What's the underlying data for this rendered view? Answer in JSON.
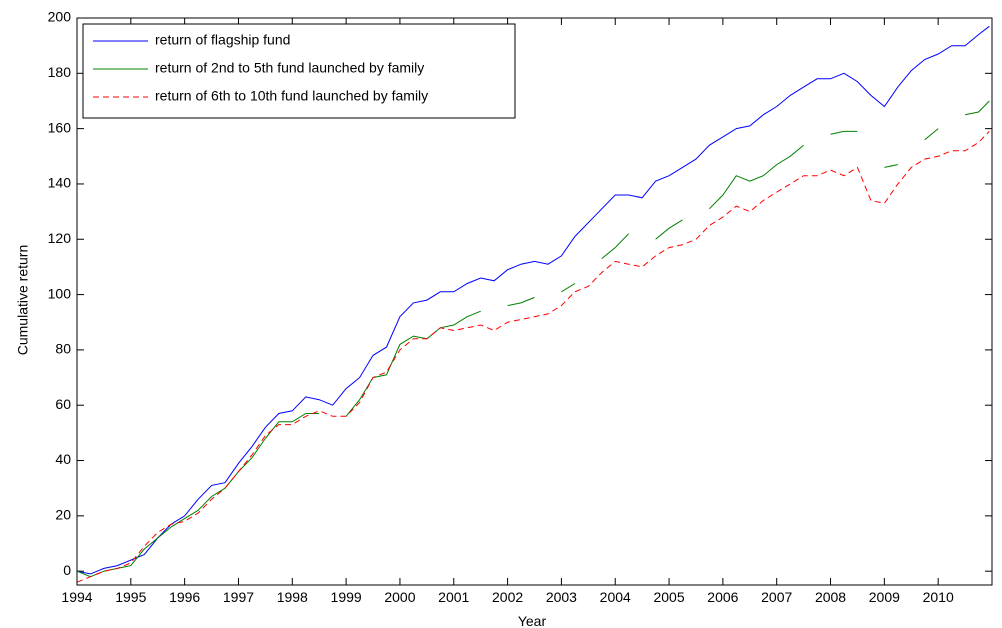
{
  "chart_data": {
    "type": "line",
    "xlabel": "Year",
    "ylabel": "Cumulative return",
    "x": [
      1994,
      1994.25,
      1994.5,
      1994.75,
      1995,
      1995.25,
      1995.5,
      1995.75,
      1996,
      1996.25,
      1996.5,
      1996.75,
      1997,
      1997.25,
      1997.5,
      1997.75,
      1998,
      1998.25,
      1998.5,
      1998.75,
      1999,
      1999.25,
      1999.5,
      1999.75,
      2000,
      2000.25,
      2000.5,
      2000.75,
      2001,
      2001.25,
      2001.5,
      2001.75,
      2002,
      2002.25,
      2002.5,
      2002.75,
      2003,
      2003.25,
      2003.5,
      2003.75,
      2004,
      2004.25,
      2004.5,
      2004.75,
      2005,
      2005.25,
      2005.5,
      2005.75,
      2006,
      2006.25,
      2006.5,
      2006.75,
      2007,
      2007.25,
      2007.5,
      2007.75,
      2008,
      2008.25,
      2008.5,
      2008.75,
      2009,
      2009.25,
      2009.5,
      2009.75,
      2010,
      2010.25,
      2010.5,
      2010.75,
      2010.95
    ],
    "series": [
      {
        "name": "return of flagship fund",
        "color": "#0000ff",
        "dash": false,
        "values": [
          0,
          -1,
          1,
          2,
          4,
          6,
          12,
          17,
          20,
          26,
          31,
          32,
          39,
          45,
          52,
          57,
          58,
          63,
          62,
          60,
          66,
          70,
          78,
          81,
          92,
          97,
          98,
          101,
          101,
          104,
          106,
          105,
          109,
          111,
          112,
          111,
          114,
          121,
          126,
          131,
          136,
          136,
          135,
          141,
          143,
          146,
          149,
          154,
          157,
          160,
          161,
          165,
          168,
          172,
          175,
          178,
          178,
          180,
          177,
          172,
          168,
          175,
          181,
          185,
          187,
          190,
          190,
          194,
          197
        ]
      },
      {
        "name": "return of 2nd to 5th fund launched by family",
        "color": "#008000",
        "dash": false,
        "values": [
          0,
          -2,
          0,
          1,
          2,
          8,
          12,
          16,
          19,
          22,
          27,
          30,
          36,
          41,
          48,
          54,
          54,
          57,
          57,
          null,
          56,
          62,
          70,
          71,
          82,
          85,
          84,
          88,
          89,
          92,
          94,
          null,
          96,
          97,
          99,
          null,
          101,
          104,
          null,
          113,
          117,
          122,
          null,
          120,
          124,
          127,
          null,
          131,
          136,
          143,
          141,
          143,
          147,
          150,
          154,
          null,
          158,
          159,
          159,
          null,
          146,
          147,
          null,
          156,
          160,
          null,
          165,
          166,
          170
        ]
      },
      {
        "name": "return of 6th to 10th fund launched by family",
        "color": "#ff0000",
        "dash": true,
        "values": [
          -4,
          -2,
          0,
          1,
          3,
          9,
          14,
          17,
          18,
          21,
          26,
          30,
          36,
          42,
          49,
          53,
          53,
          56,
          58,
          56,
          56,
          61,
          70,
          72,
          80,
          84,
          84,
          88,
          87,
          88,
          89,
          87,
          90,
          91,
          92,
          93,
          96,
          101,
          103,
          108,
          112,
          111,
          110,
          114,
          117,
          118,
          120,
          125,
          128,
          132,
          130,
          134,
          137,
          140,
          143,
          143,
          145,
          143,
          146,
          134,
          133,
          140,
          146,
          149,
          150,
          152,
          152,
          155,
          159
        ]
      }
    ],
    "xlim": [
      1994,
      2011
    ],
    "ylim": [
      -5,
      200
    ],
    "xticks": [
      1994,
      1995,
      1996,
      1997,
      1998,
      1999,
      2000,
      2001,
      2002,
      2003,
      2004,
      2005,
      2006,
      2007,
      2008,
      2009,
      2010
    ],
    "yticks": [
      0,
      20,
      40,
      60,
      80,
      100,
      120,
      140,
      160,
      180,
      200
    ],
    "grid": false,
    "legend": "northwest"
  }
}
